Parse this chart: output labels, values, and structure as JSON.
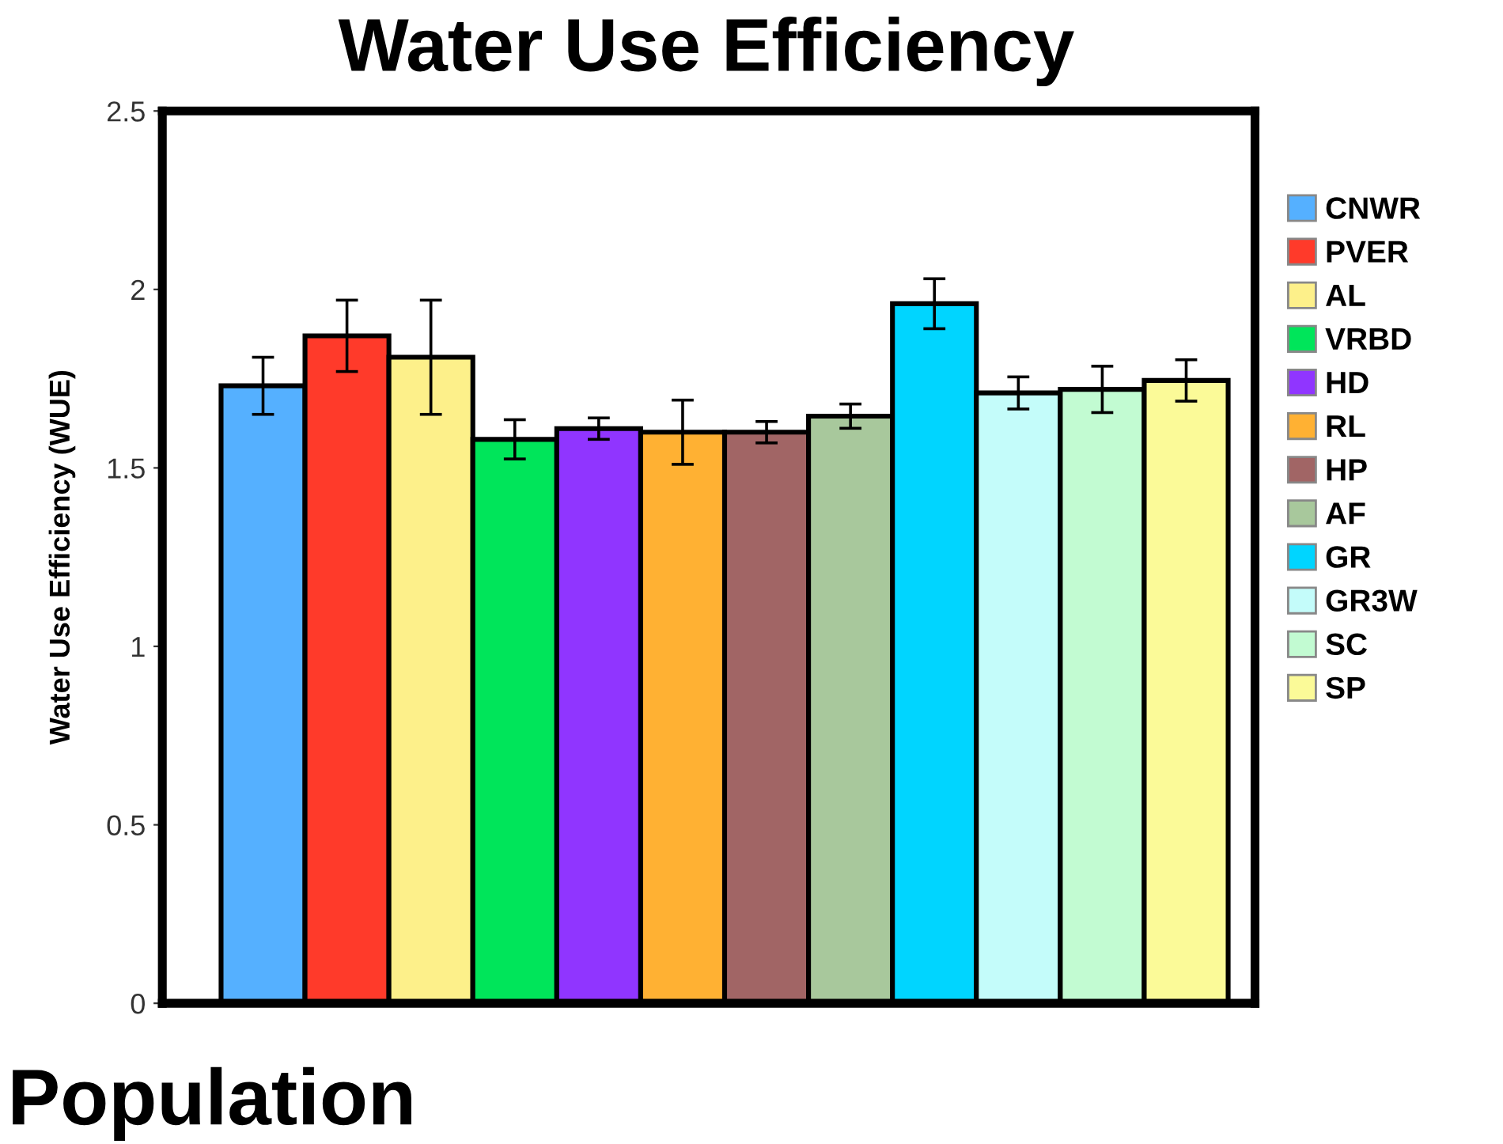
{
  "chart_data": {
    "type": "bar",
    "title": "Water Use Efficiency",
    "ylabel": "Water Use Efficiency (WUE)",
    "annotations": [
      "Population"
    ],
    "categories": [
      null
    ],
    "series": [
      {
        "name": "CNWR",
        "color": "#55b0ff",
        "values": [
          1.73
        ],
        "errors": [
          0.08
        ]
      },
      {
        "name": "PVER",
        "color": "#ff3a2a",
        "values": [
          1.87
        ],
        "errors": [
          0.1
        ]
      },
      {
        "name": "AL",
        "color": "#fdf08a",
        "values": [
          1.81
        ],
        "errors": [
          0.16
        ]
      },
      {
        "name": "VRBD",
        "color": "#00e55a",
        "values": [
          1.58
        ],
        "errors": [
          0.055
        ]
      },
      {
        "name": "HD",
        "color": "#9035ff",
        "values": [
          1.61
        ],
        "errors": [
          0.03
        ]
      },
      {
        "name": "RL",
        "color": "#ffb133",
        "values": [
          1.6
        ],
        "errors": [
          0.09
        ]
      },
      {
        "name": "HP",
        "color": "#a16565",
        "values": [
          1.6
        ],
        "errors": [
          0.03
        ]
      },
      {
        "name": "AF",
        "color": "#a8c89c",
        "values": [
          1.645
        ],
        "errors": [
          0.034
        ]
      },
      {
        "name": "GR",
        "color": "#00d5ff",
        "values": [
          1.96
        ],
        "errors": [
          0.07
        ]
      },
      {
        "name": "GR3W",
        "color": "#c4fcfa",
        "values": [
          1.71
        ],
        "errors": [
          0.045
        ]
      },
      {
        "name": "SC",
        "color": "#c2fbd2",
        "values": [
          1.72
        ],
        "errors": [
          0.065
        ]
      },
      {
        "name": "SP",
        "color": "#fbfa98",
        "values": [
          1.745
        ],
        "errors": [
          0.058
        ]
      }
    ],
    "ylim": [
      0,
      2.5
    ],
    "yticks": [
      0,
      0.5,
      1,
      1.5,
      2,
      2.5
    ],
    "grid": false,
    "legend": "right"
  }
}
